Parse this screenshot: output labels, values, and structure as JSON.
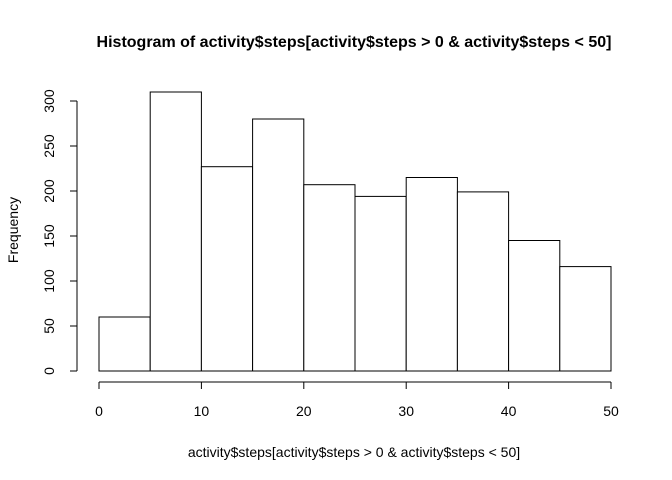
{
  "chart_data": {
    "type": "bar",
    "title": "Histogram of activity$steps[activity$steps > 0 & activity$steps < 50]",
    "xlabel": "activity$steps[activity$steps > 0 & activity$steps < 50]",
    "ylabel": "Frequency",
    "bins": [
      {
        "from": 0,
        "to": 5,
        "value": 60
      },
      {
        "from": 5,
        "to": 10,
        "value": 310
      },
      {
        "from": 10,
        "to": 15,
        "value": 227
      },
      {
        "from": 15,
        "to": 20,
        "value": 280
      },
      {
        "from": 20,
        "to": 25,
        "value": 207
      },
      {
        "from": 25,
        "to": 30,
        "value": 194
      },
      {
        "from": 30,
        "to": 35,
        "value": 215
      },
      {
        "from": 35,
        "to": 40,
        "value": 199
      },
      {
        "from": 40,
        "to": 45,
        "value": 145
      },
      {
        "from": 45,
        "to": 50,
        "value": 116
      }
    ],
    "xlim": [
      0,
      50
    ],
    "ylim": [
      0,
      310
    ],
    "x_ticks": [
      0,
      10,
      20,
      30,
      40,
      50
    ],
    "y_ticks": [
      0,
      50,
      100,
      150,
      200,
      250,
      300
    ],
    "grid": false,
    "legend": "none",
    "colors": {
      "bar_fill": "#ffffff",
      "bar_stroke": "#000000",
      "axis": "#000000"
    }
  }
}
